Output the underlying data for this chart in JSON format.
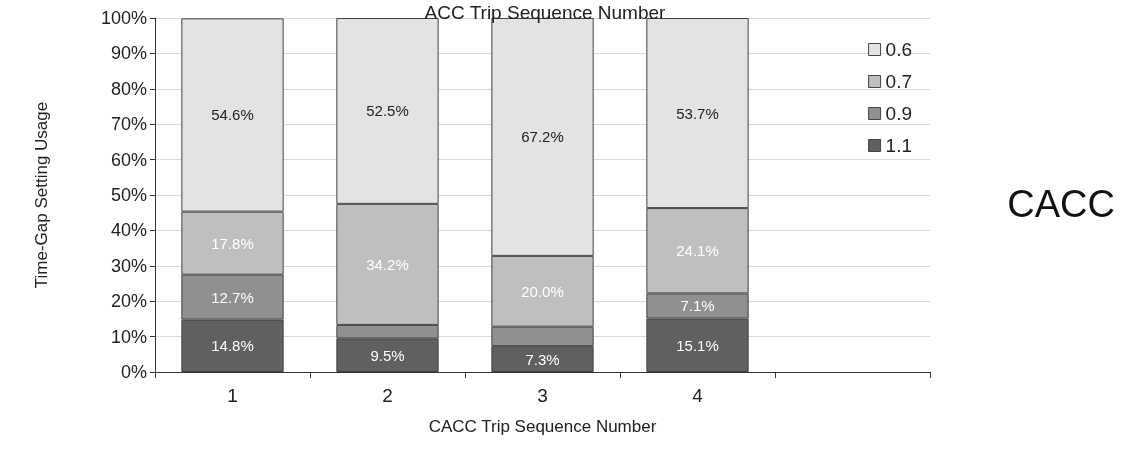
{
  "chart_data": {
    "type": "bar",
    "title": "ACC Trip Sequence Number",
    "xlabel": "CACC Trip Sequence Number",
    "ylabel": "Time-Gap Setting Usage",
    "annotations": [
      "CACC"
    ],
    "categories": [
      "1",
      "2",
      "3",
      "4",
      null
    ],
    "stacked": true,
    "grid": "y",
    "legend": "top right",
    "ylim": [
      0,
      100
    ],
    "yticks": [
      {
        "value": 0,
        "label": "0%"
      },
      {
        "value": 10,
        "label": "10%"
      },
      {
        "value": 20,
        "label": "20%"
      },
      {
        "value": 30,
        "label": "30%"
      },
      {
        "value": 40,
        "label": "40%"
      },
      {
        "value": 50,
        "label": "50%"
      },
      {
        "value": 60,
        "label": "60%"
      },
      {
        "value": 70,
        "label": "70%"
      },
      {
        "value": 80,
        "label": "80%"
      },
      {
        "value": 90,
        "label": "90%"
      },
      {
        "value": 100,
        "label": "100%"
      }
    ],
    "series": [
      {
        "name": "1.1",
        "color": "#606060",
        "values": [
          14.8,
          9.5,
          7.3,
          15.1,
          null
        ],
        "value_labels": [
          "14.8%",
          "9.5%",
          "7.3%",
          "15.1%",
          null
        ]
      },
      {
        "name": "0.9",
        "color": "#909090",
        "values": [
          12.7,
          3.8,
          5.5,
          7.1,
          null
        ],
        "value_labels": [
          "12.7%",
          null,
          null,
          "7.1%",
          null
        ]
      },
      {
        "name": "0.7",
        "color": "#bfbfbf",
        "values": [
          17.8,
          34.2,
          20.0,
          24.1,
          null
        ],
        "value_labels": [
          "17.8%",
          "34.2%",
          "20.0%",
          "24.1%",
          null
        ]
      },
      {
        "name": "0.6",
        "color": "#e3e3e3",
        "values": [
          54.6,
          52.5,
          67.2,
          53.7,
          null
        ],
        "value_labels": [
          "54.6%",
          "52.5%",
          "67.2%",
          "53.7%",
          null
        ]
      }
    ]
  }
}
